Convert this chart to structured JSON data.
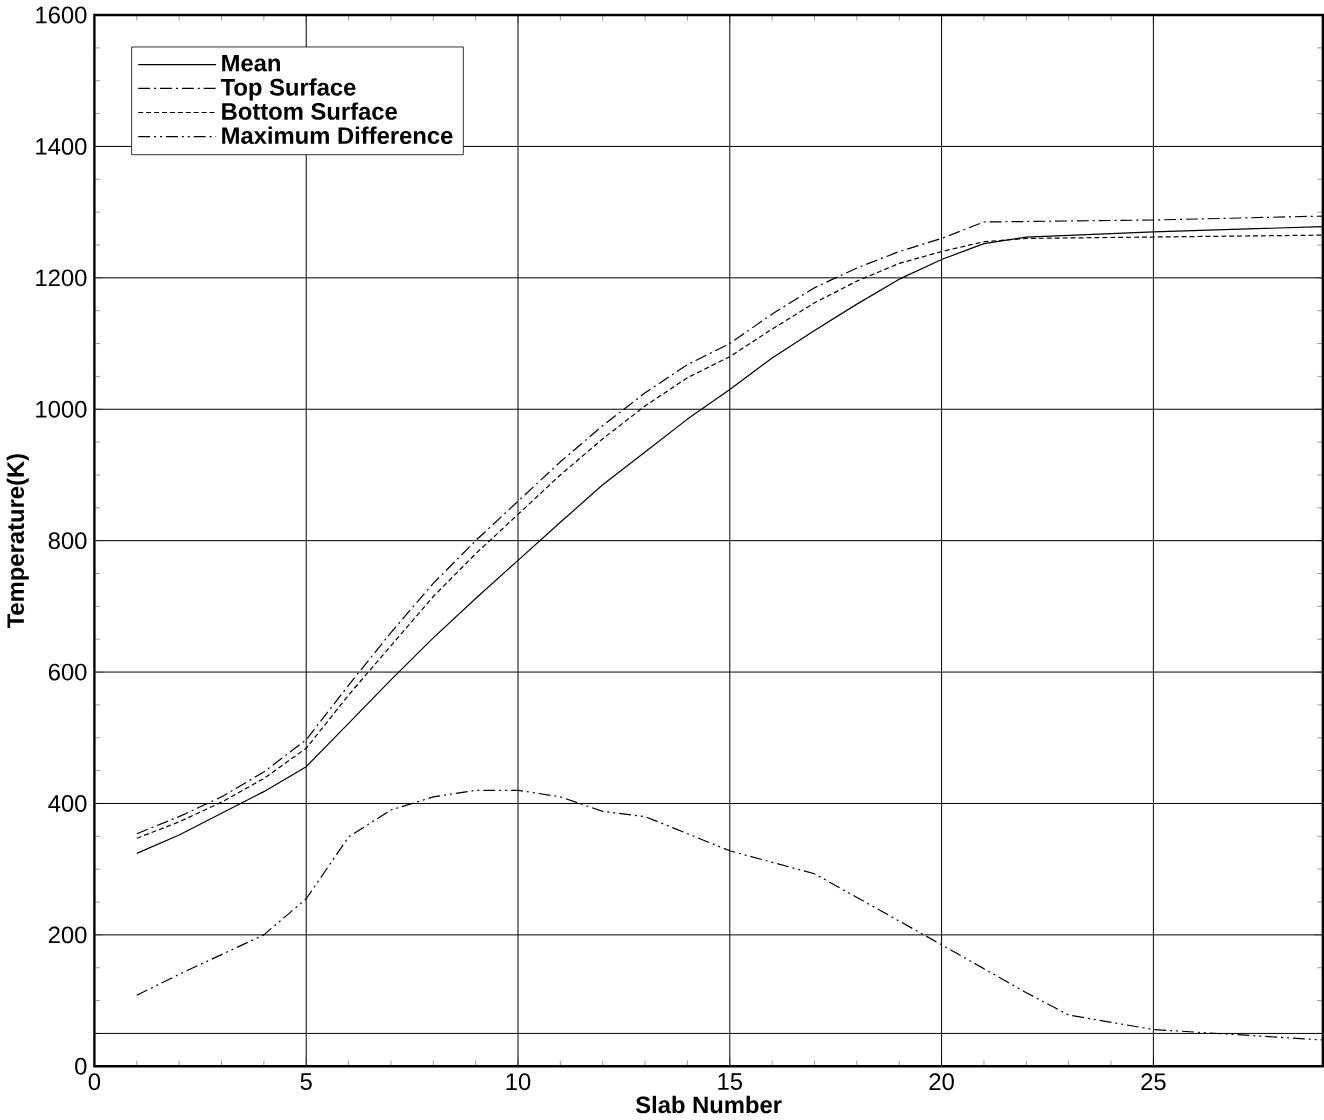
{
  "chart_data": {
    "type": "line",
    "xlabel": "Slab Number",
    "ylabel": "Temperature(K)",
    "xlim": [
      0,
      29
    ],
    "ylim": [
      0,
      1600
    ],
    "xticks": [
      0,
      5,
      10,
      15,
      20,
      25
    ],
    "yticks": [
      0,
      200,
      400,
      600,
      800,
      1000,
      1200,
      1400,
      1600
    ],
    "grid": true,
    "legend": "top left",
    "marker": "none",
    "ref_lines": [
      {
        "axis": "y",
        "value": 50,
        "color": "#000000"
      }
    ],
    "series": [
      {
        "name": "Mean",
        "color": "#000000",
        "line_style": "solid",
        "x": [
          1,
          2,
          3,
          4,
          5,
          6,
          7,
          8,
          9,
          10,
          11,
          12,
          13,
          14,
          15,
          16,
          17,
          18,
          19,
          20,
          21,
          22,
          25,
          29
        ],
        "values": [
          324,
          352,
          385,
          418,
          456,
          522,
          588,
          652,
          712,
          770,
          828,
          885,
          935,
          985,
          1030,
          1078,
          1120,
          1160,
          1198,
          1228,
          1252,
          1262,
          1270,
          1278
        ]
      },
      {
        "name": "Top Surface",
        "color": "#000000",
        "line_style": "dashdot",
        "x": [
          1,
          2,
          3,
          4,
          5,
          6,
          7,
          8,
          9,
          10,
          11,
          12,
          13,
          14,
          15,
          16,
          17,
          18,
          19,
          20,
          21,
          25,
          29
        ],
        "values": [
          354,
          380,
          410,
          448,
          497,
          580,
          660,
          735,
          800,
          860,
          920,
          975,
          1025,
          1068,
          1100,
          1145,
          1185,
          1215,
          1240,
          1260,
          1285,
          1288,
          1294
        ]
      },
      {
        "name": "Bottom Surface",
        "color": "#000000",
        "line_style": "dashed",
        "x": [
          1,
          2,
          3,
          4,
          5,
          6,
          7,
          8,
          9,
          10,
          11,
          12,
          13,
          14,
          15,
          16,
          17,
          18,
          19,
          20,
          21,
          22,
          29
        ],
        "values": [
          347,
          372,
          402,
          438,
          484,
          565,
          640,
          715,
          780,
          840,
          900,
          955,
          1005,
          1048,
          1080,
          1122,
          1162,
          1195,
          1222,
          1240,
          1255,
          1260,
          1265
        ]
      },
      {
        "name": "Maximum Difference",
        "color": "#000000",
        "line_style": "dashdotdot",
        "x": [
          1,
          2,
          3,
          4,
          5,
          6,
          7,
          8,
          9,
          10,
          11,
          12,
          13,
          15,
          17,
          20,
          22,
          23,
          25,
          29
        ],
        "values": [
          108,
          140,
          170,
          200,
          255,
          349,
          390,
          410,
          420,
          420,
          410,
          388,
          380,
          328,
          293,
          185,
          112,
          78,
          56,
          40
        ]
      }
    ]
  }
}
